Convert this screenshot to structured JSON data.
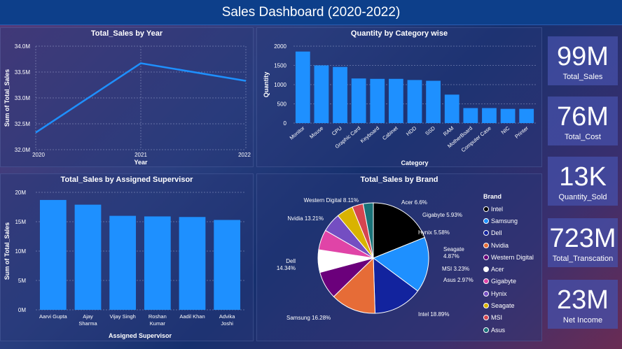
{
  "header": {
    "title": "Sales Dashboard (2020-2022)"
  },
  "line_panel": {
    "chart_data": {
      "type": "line",
      "title": "Total_Sales by Year",
      "xlabel": "Year",
      "ylabel": "Sum of Total_Sales",
      "x": [
        "2020",
        "2021",
        "2022"
      ],
      "values": [
        32.33,
        33.67,
        33.33
      ],
      "ylim": [
        32.0,
        34.0
      ],
      "yticks": [
        "32.0M",
        "32.5M",
        "33.0M",
        "33.5M",
        "34.0M"
      ],
      "color": "#1e90ff",
      "grid": true
    }
  },
  "category_panel": {
    "chart_data": {
      "type": "bar",
      "title": "Quantity by Category wise",
      "xlabel": "Category",
      "ylabel": "Quantity",
      "categories": [
        "Monitor",
        "Mouse",
        "CPU",
        "Graphic Card",
        "Keyboard",
        "Cabinet",
        "HDD",
        "SSD",
        "RAM",
        "MotherBoard",
        "Computer Case",
        "NIC",
        "Printer"
      ],
      "values": [
        1860,
        1500,
        1460,
        1160,
        1150,
        1150,
        1120,
        1100,
        740,
        390,
        390,
        370,
        370
      ],
      "ylim": [
        0,
        2000
      ],
      "yticks": [
        "0",
        "500",
        "1000",
        "1500",
        "2000"
      ],
      "color": "#1e90ff"
    }
  },
  "supervisor_panel": {
    "chart_data": {
      "type": "bar",
      "title": "Total_Sales by Assigned Supervisor",
      "xlabel": "Assigned Supervisor",
      "ylabel": "Sum of Total_Sales",
      "categories": [
        [
          "Aarvi Gupta"
        ],
        [
          "Ajay",
          "Sharma"
        ],
        [
          "Vijay Singh"
        ],
        [
          "Roshan",
          "Kumar"
        ],
        [
          "Aadil Khan"
        ],
        [
          "Advika",
          "Joshi"
        ]
      ],
      "values": [
        18.7,
        17.9,
        16.0,
        15.9,
        15.8,
        15.3
      ],
      "ylim": [
        0,
        20
      ],
      "yticks": [
        "0M",
        "5M",
        "10M",
        "15M",
        "20M"
      ],
      "color": "#1e90ff"
    }
  },
  "brand_panel": {
    "chart_data": {
      "type": "pie",
      "title": "Total_Sales by Brand",
      "legend_title": "Brand",
      "slices": [
        {
          "name": "Intel",
          "value": 18.89,
          "label": "Intel 18.89%",
          "color": "#000000"
        },
        {
          "name": "Samsung",
          "value": 16.28,
          "label": "Samsung 16.28%",
          "color": "#1e90ff"
        },
        {
          "name": "Dell",
          "value": 14.34,
          "label": "Dell\n14.34%",
          "color": "#12239e"
        },
        {
          "name": "Nvidia",
          "value": 13.21,
          "label": "Nvidia 13.21%",
          "color": "#e66c37"
        },
        {
          "name": "Western Digital",
          "value": 8.11,
          "label": "Western Digital 8.11%",
          "color": "#6b007b"
        },
        {
          "name": "Acer",
          "value": 6.6,
          "label": "Acer 6.6%",
          "color": "#ffffff"
        },
        {
          "name": "Gigabyte",
          "value": 5.93,
          "label": "Gigabyte 5.93%",
          "color": "#e044a7"
        },
        {
          "name": "Hynix",
          "value": 5.58,
          "label": "Hynix 5.58%",
          "color": "#744ec2"
        },
        {
          "name": "Seagate",
          "value": 4.87,
          "label": "Seagate\n4.87%",
          "color": "#d9b300"
        },
        {
          "name": "MSI",
          "value": 3.23,
          "label": "MSI 3.23%",
          "color": "#d64550"
        },
        {
          "name": "Asus",
          "value": 2.97,
          "label": "Asus 2.97%",
          "color": "#197278"
        }
      ]
    }
  },
  "kpis": [
    {
      "value": "99M",
      "label": "Total_Sales"
    },
    {
      "value": "76M",
      "label": "Total_Cost"
    },
    {
      "value": "13K",
      "label": "Quantity_Sold"
    },
    {
      "value": "723M",
      "label": "Total_Transcation"
    },
    {
      "value": "23M",
      "label": "Net Income"
    }
  ]
}
